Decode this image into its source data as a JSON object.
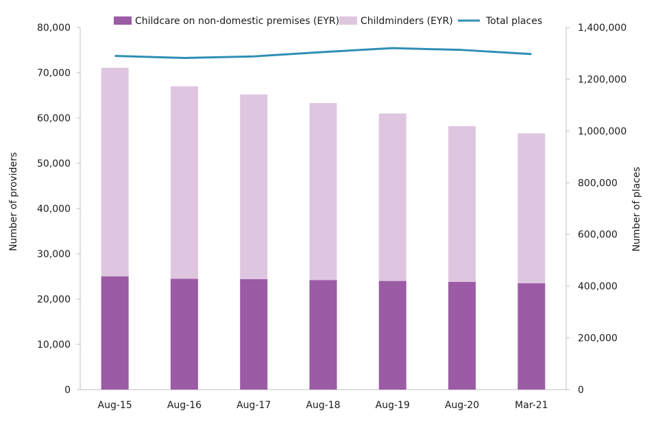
{
  "chart_data": {
    "type": "bar",
    "stacked": true,
    "categories": [
      "Aug-15",
      "Aug-16",
      "Aug-17",
      "Aug-18",
      "Aug-19",
      "Aug-20",
      "Mar-21"
    ],
    "series": [
      {
        "name": "Childcare on non-domestic premises (EYR)",
        "kind": "bar",
        "axis": "left",
        "color": "#9b5ba5",
        "values": [
          25000,
          24500,
          24400,
          24200,
          24000,
          23800,
          23500
        ]
      },
      {
        "name": "Childminders (EYR)",
        "kind": "bar",
        "axis": "left",
        "color": "#dfc6e0",
        "values": [
          46100,
          42500,
          40800,
          39100,
          37000,
          34400,
          33100
        ]
      },
      {
        "name": "Total places",
        "kind": "line",
        "axis": "right",
        "color": "#2e8eb5",
        "values": [
          1290000,
          1282000,
          1288000,
          1305000,
          1320000,
          1313000,
          1297000
        ]
      }
    ],
    "ylabel": "Number of providers",
    "ylabel_right": "Number of places",
    "ylim": [
      0,
      80000
    ],
    "ylim_right": [
      0,
      1400000
    ],
    "yticks": [
      "0",
      "10,000",
      "20,000",
      "30,000",
      "40,000",
      "50,000",
      "60,000",
      "70,000",
      "80,000"
    ],
    "yticks_right": [
      "0",
      "200,000",
      "400,000",
      "600,000",
      "800,000",
      "1,000,000",
      "1,200,000",
      "1,400,000"
    ],
    "grid": false,
    "legend_position": "top"
  }
}
